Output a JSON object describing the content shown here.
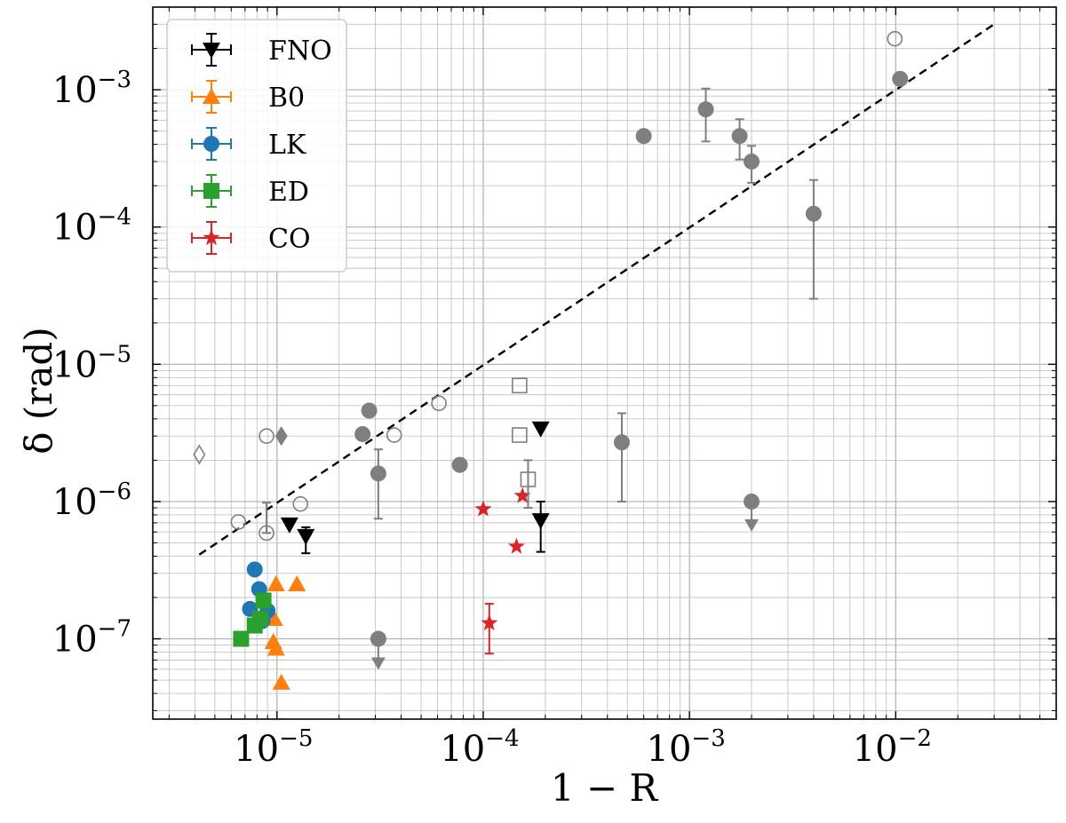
{
  "chart_data": {
    "type": "scatter",
    "xscale": "log",
    "yscale": "log",
    "xlim": [
      2.5e-06,
      0.06
    ],
    "ylim": [
      2.6e-08,
      0.004
    ],
    "xlabel": "1 − R",
    "ylabel": "δ (rad)",
    "xticks": [
      {
        "base": "10",
        "exp": "−5",
        "value": 1e-05
      },
      {
        "base": "10",
        "exp": "−4",
        "value": 0.0001
      },
      {
        "base": "10",
        "exp": "−3",
        "value": 0.001
      },
      {
        "base": "10",
        "exp": "−2",
        "value": 0.01
      }
    ],
    "yticks": [
      {
        "base": "10",
        "exp": "−7",
        "value": 1e-07
      },
      {
        "base": "10",
        "exp": "−6",
        "value": 1e-06
      },
      {
        "base": "10",
        "exp": "−5",
        "value": 1e-05
      },
      {
        "base": "10",
        "exp": "−4",
        "value": 0.0001
      },
      {
        "base": "10",
        "exp": "−3",
        "value": 0.001
      }
    ],
    "fit_line": {
      "style": "dashed",
      "color": "#000000",
      "x": [
        4.2e-06,
        0.03
      ],
      "y": [
        4.1e-07,
        0.003
      ]
    },
    "series": [
      {
        "name": "FNO",
        "color": "#000000",
        "marker": "tri-down",
        "points": [
          {
            "x": 1.15e-05,
            "y": 6.8e-07
          },
          {
            "x": 1.38e-05,
            "y": 5.6e-07,
            "ylo": 4.2e-07,
            "yhi": 6.5e-07
          },
          {
            "x": 0.00019,
            "y": 3.4e-06
          },
          {
            "x": 0.00019,
            "y": 7.3e-07,
            "ylo": 4.3e-07,
            "yhi": 1e-06
          }
        ]
      },
      {
        "name": "B0",
        "color": "#ff7f0e",
        "marker": "tri-up",
        "points": [
          {
            "x": 9.9e-06,
            "y": 2.5e-07
          },
          {
            "x": 1.25e-05,
            "y": 2.5e-07
          },
          {
            "x": 9.7e-06,
            "y": 1.4e-07
          },
          {
            "x": 9.6e-06,
            "y": 9.5e-08
          },
          {
            "x": 9.9e-06,
            "y": 8.5e-08
          },
          {
            "x": 1.05e-05,
            "y": 4.8e-08
          }
        ]
      },
      {
        "name": "LK",
        "color": "#1f77b4",
        "marker": "circle",
        "points": [
          {
            "x": 7.8e-06,
            "y": 3.2e-07
          },
          {
            "x": 8.2e-06,
            "y": 2.3e-07
          },
          {
            "x": 7.4e-06,
            "y": 1.65e-07
          },
          {
            "x": 9e-06,
            "y": 1.6e-07
          },
          {
            "x": 8.5e-06,
            "y": 1.35e-07
          }
        ]
      },
      {
        "name": "ED",
        "color": "#2ca02c",
        "marker": "square",
        "points": [
          {
            "x": 6.7e-06,
            "y": 1e-07
          },
          {
            "x": 7.8e-06,
            "y": 1.25e-07
          },
          {
            "x": 8.3e-06,
            "y": 1.4e-07
          },
          {
            "x": 8.6e-06,
            "y": 1.9e-07
          }
        ]
      },
      {
        "name": "CO",
        "color": "#d62728",
        "marker": "star",
        "points": [
          {
            "x": 0.0001,
            "y": 8.8e-07
          },
          {
            "x": 0.000155,
            "y": 1.1e-06
          },
          {
            "x": 0.000145,
            "y": 4.7e-07
          },
          {
            "x": 0.000107,
            "y": 1.3e-07,
            "ylo": 7.8e-08,
            "yhi": 1.8e-07
          }
        ]
      },
      {
        "name": "",
        "color": "#7f7f7f",
        "marker": "circle",
        "points": [
          {
            "x": 0.0006,
            "y": 0.00046
          },
          {
            "x": 0.0012,
            "y": 0.00072,
            "ylo": 0.00042,
            "yhi": 0.00102
          },
          {
            "x": 0.00175,
            "y": 0.00046,
            "ylo": 0.00031,
            "yhi": 0.00061
          },
          {
            "x": 0.002,
            "y": 0.0003,
            "ylo": 0.00021,
            "yhi": 0.00039
          },
          {
            "x": 0.004,
            "y": 0.000125,
            "ylo": 3e-05,
            "yhi": 0.00022
          },
          {
            "x": 0.0105,
            "y": 0.0012
          },
          {
            "x": 2.8e-05,
            "y": 4.6e-06
          },
          {
            "x": 2.6e-05,
            "y": 3.1e-06
          },
          {
            "x": 3.1e-05,
            "y": 1.6e-06,
            "ylo": 7.5e-07,
            "yhi": 2.4e-06
          },
          {
            "x": 7.7e-05,
            "y": 1.85e-06
          },
          {
            "x": 0.00047,
            "y": 2.7e-06,
            "ylo": 1e-06,
            "yhi": 4.4e-06
          },
          {
            "x": 3.1e-05,
            "y": 1e-07,
            "limit": "upper",
            "arrow": 6.5e-08
          },
          {
            "x": 0.002,
            "y": 1e-06,
            "limit": "upper",
            "arrow": 6.6e-07
          }
        ]
      },
      {
        "name": "",
        "color": "#7f7f7f",
        "marker": "open-circle",
        "points": [
          {
            "x": 0.0099,
            "y": 0.00235
          },
          {
            "x": 6.1e-05,
            "y": 5.2e-06
          },
          {
            "x": 3.7e-05,
            "y": 3.05e-06
          },
          {
            "x": 8.9e-06,
            "y": 3e-06
          },
          {
            "x": 1.3e-05,
            "y": 9.6e-07
          },
          {
            "x": 6.5e-06,
            "y": 7.1e-07
          },
          {
            "x": 8.9e-06,
            "y": 5.9e-07,
            "ylo": 5.9e-07,
            "yhi": 9.8e-07
          }
        ]
      },
      {
        "name": "",
        "color": "#7f7f7f",
        "marker": "open-square",
        "points": [
          {
            "x": 0.00015,
            "y": 7e-06
          },
          {
            "x": 0.00015,
            "y": 3.05e-06
          },
          {
            "x": 0.000165,
            "y": 1.45e-06,
            "ylo": 9e-07,
            "yhi": 2e-06
          }
        ]
      },
      {
        "name": "",
        "color": "#7f7f7f",
        "marker": "diamond",
        "points": [
          {
            "x": 1.05e-05,
            "y": 3e-06
          }
        ]
      },
      {
        "name": "",
        "color": "#7f7f7f",
        "marker": "open-diamond",
        "points": [
          {
            "x": 4.2e-06,
            "y": 2.2e-06
          }
        ]
      }
    ]
  }
}
